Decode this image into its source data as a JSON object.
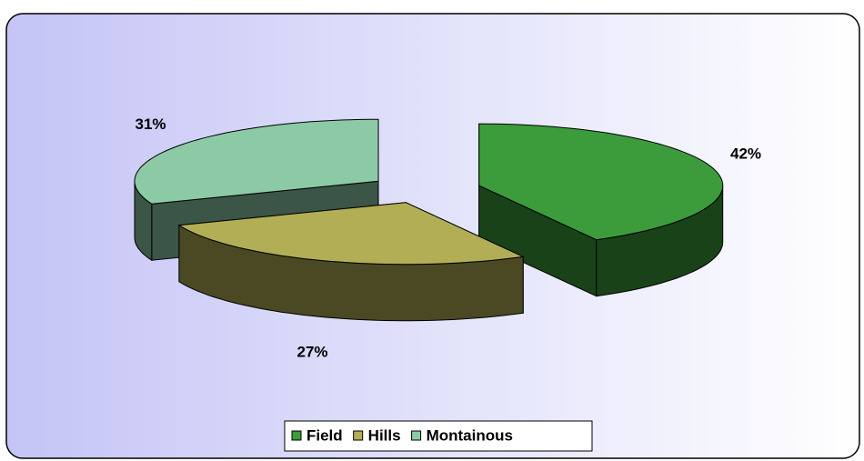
{
  "chart_data": {
    "type": "pie3d",
    "categories": [
      "Field",
      "Hills",
      "Montainous"
    ],
    "values": [
      42,
      27,
      31
    ],
    "value_labels": [
      "42%",
      "27%",
      "31%"
    ],
    "colors": [
      "#3c9c3c",
      "#b2ae55",
      "#8ccaa6"
    ],
    "legend": "bottom"
  }
}
